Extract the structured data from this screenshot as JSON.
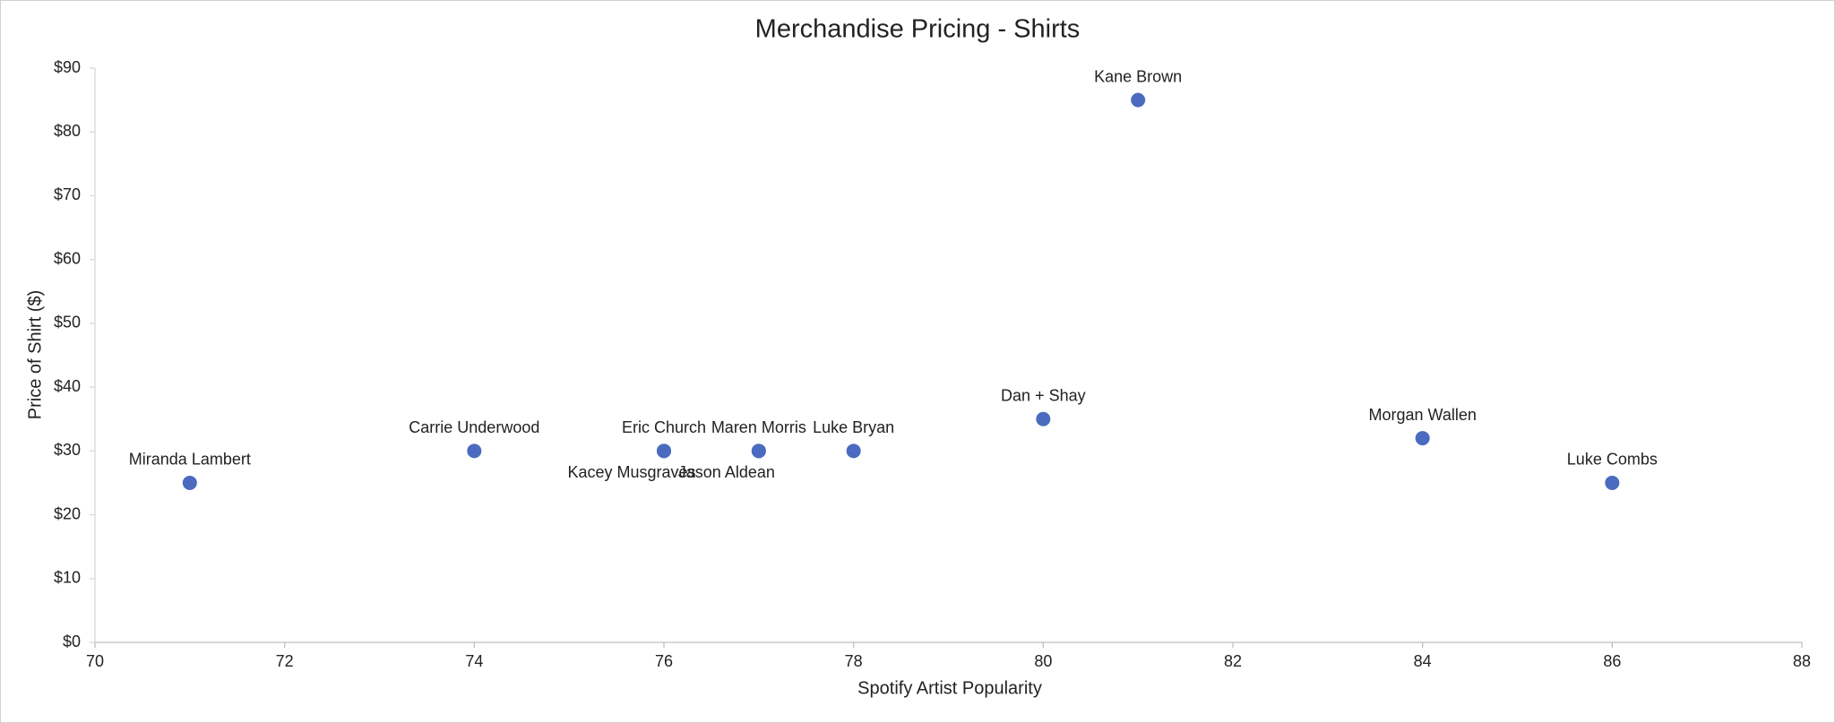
{
  "chart_data": {
    "type": "scatter",
    "title": "Merchandise Pricing - Shirts",
    "xlabel": "Spotify Artist Popularity",
    "ylabel": "Price of Shirt ($)",
    "x": [
      71,
      74,
      76,
      76,
      77,
      77,
      78,
      80,
      81,
      84,
      86
    ],
    "values": [
      25,
      30,
      30,
      30,
      30,
      30,
      30,
      35,
      85,
      32,
      25
    ],
    "point_labels": [
      "Miranda Lambert",
      "Carrie Underwood",
      "Eric Church",
      "Kacey Musgraves",
      "Maren Morris",
      "Jason Aldean",
      "Luke Bryan",
      "Dan + Shay",
      "Kane Brown",
      "Morgan Wallen",
      "Luke Combs"
    ],
    "color": "#4a6bbf",
    "xlim": [
      70,
      88
    ],
    "xticks": [
      70,
      72,
      74,
      76,
      78,
      80,
      82,
      84,
      86,
      88
    ],
    "ylim": [
      0,
      90
    ],
    "yticks": [
      {
        "value": 0,
        "label": "$0"
      },
      {
        "value": 10,
        "label": "$10"
      },
      {
        "value": 20,
        "label": "$20"
      },
      {
        "value": 30,
        "label": "$30"
      },
      {
        "value": 40,
        "label": "$40"
      },
      {
        "value": 50,
        "label": "$50"
      },
      {
        "value": 60,
        "label": "$60"
      },
      {
        "value": 70,
        "label": "$70"
      },
      {
        "value": 80,
        "label": "$80"
      },
      {
        "value": 90,
        "label": "$90"
      }
    ]
  }
}
